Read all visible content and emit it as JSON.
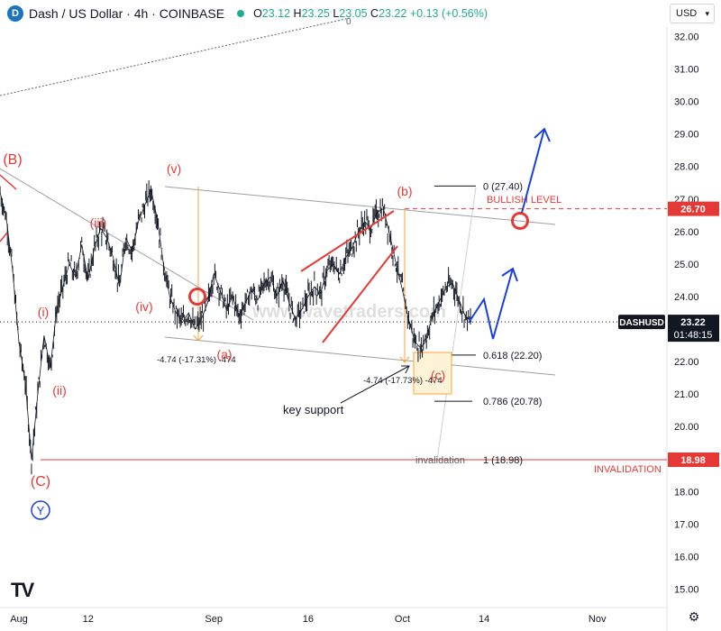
{
  "header": {
    "symbol_title": "Dash / US Dollar · 4h · COINBASE",
    "coin_icon": "dash-coin-icon",
    "status_icon": "market-open-dot",
    "ohlc": {
      "o": "23.12",
      "h": "23.25",
      "l": "23.05",
      "c": "23.22",
      "chg": "+0.13 (+0.56%)"
    },
    "currency": "USD"
  },
  "chart_data": {
    "type": "line",
    "title": "Dash / US Dollar · 4h · COINBASE",
    "symbol": "DASHUSD",
    "ylim": [
      14.6,
      32.8
    ],
    "y_ticks": [
      "32.00",
      "31.00",
      "30.00",
      "29.00",
      "28.00",
      "27.00",
      "26.00",
      "25.00",
      "24.00",
      "23.00",
      "22.00",
      "21.00",
      "20.00",
      "19.00",
      "18.00",
      "17.00",
      "16.00",
      "15.00"
    ],
    "x_ticks": [
      "Aug",
      "12",
      "Sep",
      "16",
      "Oct",
      "14",
      "Nov"
    ],
    "series": [
      {
        "values": [
          [
            "Jul 29",
            27.2
          ],
          [
            "Jul 30",
            26.4
          ],
          [
            "Jul 31",
            24.8
          ],
          [
            "Aug 1",
            22.6
          ],
          [
            "Aug 2",
            21.4
          ],
          [
            "Aug 3",
            18.98
          ],
          [
            "Aug 4",
            21.0
          ],
          [
            "Aug 5",
            22.8
          ],
          [
            "Aug 6",
            21.8
          ],
          [
            "Aug 7",
            23.6
          ],
          [
            "Aug 8",
            24.3
          ],
          [
            "Aug 9",
            25.0
          ],
          [
            "Aug 10",
            24.6
          ],
          [
            "Aug 11",
            25.6
          ],
          [
            "Aug 12",
            24.5
          ],
          [
            "Aug 13",
            25.5
          ],
          [
            "Aug 14",
            26.1
          ],
          [
            "Aug 15",
            25.8
          ],
          [
            "Aug 16",
            25.2
          ],
          [
            "Aug 17",
            24.3
          ],
          [
            "Aug 18",
            25.8
          ],
          [
            "Aug 19",
            25.4
          ],
          [
            "Aug 20",
            26.3
          ],
          [
            "Aug 21",
            26.8
          ],
          [
            "Aug 22",
            27.3
          ],
          [
            "Aug 23",
            26.4
          ],
          [
            "Aug 24",
            25.0
          ],
          [
            "Aug 25",
            24.0
          ],
          [
            "Aug 26",
            23.5
          ],
          [
            "Aug 27",
            23.2
          ],
          [
            "Aug 28",
            23.5
          ],
          [
            "Aug 29",
            23.0
          ],
          [
            "Aug 30",
            23.3
          ],
          [
            "Aug 31",
            23.8
          ],
          [
            "Sep 1",
            24.7
          ],
          [
            "Sep 2",
            24.2
          ],
          [
            "Sep 3",
            23.6
          ],
          [
            "Sep 4",
            24.0
          ],
          [
            "Sep 5",
            23.4
          ],
          [
            "Sep 6",
            23.8
          ],
          [
            "Sep 7",
            24.2
          ],
          [
            "Sep 8",
            23.9
          ],
          [
            "Sep 9",
            24.4
          ],
          [
            "Sep 10",
            24.6
          ],
          [
            "Sep 11",
            24.0
          ],
          [
            "Sep 12",
            24.5
          ],
          [
            "Sep 13",
            23.8
          ],
          [
            "Sep 14",
            23.3
          ],
          [
            "Sep 15",
            23.6
          ],
          [
            "Sep 16",
            24.0
          ],
          [
            "Sep 17",
            24.3
          ],
          [
            "Sep 18",
            24.1
          ],
          [
            "Sep 19",
            24.8
          ],
          [
            "Sep 20",
            25.0
          ],
          [
            "Sep 21",
            24.7
          ],
          [
            "Sep 22",
            25.2
          ],
          [
            "Sep 23",
            25.5
          ],
          [
            "Sep 24",
            26.0
          ],
          [
            "Sep 25",
            26.3
          ],
          [
            "Sep 26",
            26.1
          ],
          [
            "Sep 27",
            26.6
          ],
          [
            "Sep 28",
            26.7
          ],
          [
            "Sep 29",
            25.9
          ],
          [
            "Sep 30",
            25.0
          ],
          [
            "Oct 1",
            24.2
          ],
          [
            "Oct 2",
            23.3
          ],
          [
            "Oct 3",
            22.6
          ],
          [
            "Oct 4",
            22.4
          ],
          [
            "Oct 5",
            22.9
          ],
          [
            "Oct 6",
            23.5
          ],
          [
            "Oct 7",
            23.9
          ],
          [
            "Oct 8",
            24.3
          ],
          [
            "Oct 9",
            24.4
          ],
          [
            "Oct 10",
            23.9
          ],
          [
            "Oct 11",
            23.4
          ],
          [
            "Oct 12",
            23.22
          ]
        ]
      }
    ],
    "price_labels": [
      {
        "text": "26.70",
        "value": 26.7,
        "color": "#e53935"
      },
      {
        "text": "23.22",
        "value": 23.22,
        "color": "#131722",
        "symbol": "DASHUSD",
        "countdown": "01:48:15"
      },
      {
        "text": "18.98",
        "value": 18.98,
        "color": "#e53935"
      }
    ],
    "wave_labels_red": [
      "(B)",
      "(v)",
      "(iii)",
      "(iv)",
      "(i)",
      "(ii)",
      "(C)",
      "(b)",
      "(a)",
      "(c)"
    ],
    "wave_label_blue": "Y",
    "fib_levels": [
      {
        "text": "0 (27.40)",
        "value": 27.4
      },
      {
        "text": "0.618 (22.20)",
        "value": 22.2
      },
      {
        "text": "0.786 (20.78)",
        "value": 20.78
      },
      {
        "text": "1 (18.98)",
        "value": 18.98,
        "prefix": "invalidation"
      }
    ],
    "annotations": {
      "bullish": "BULLISH LEVEL",
      "invalidation": "INVALIDATION",
      "key_support": "key support",
      "measure_1": "-4.74 (-17.31%) -474",
      "measure_2": "-4.74 (-17.73%) -474",
      "watermark": "www.wavetraders.com",
      "top_label": "0"
    },
    "colors": {
      "wave_red": "#e53935",
      "projection_blue": "#1a3fe0",
      "channel_gray": "#9e9e9e",
      "measure_orange": "#f7a33b",
      "price": "#131722"
    }
  },
  "footer": {
    "logo": "TV",
    "settings_icon": "gear-icon"
  }
}
